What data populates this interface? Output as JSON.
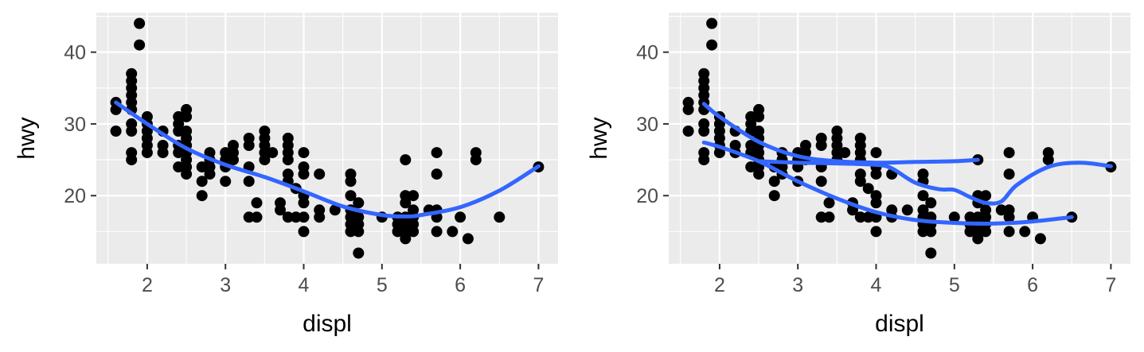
{
  "chart_data": [
    {
      "type": "scatter",
      "title": "",
      "xlabel": "displ",
      "ylabel": "hwy",
      "xlim": [
        1.35,
        7.25
      ],
      "ylim": [
        10.5,
        45.5
      ],
      "x_ticks": [
        2,
        3,
        4,
        5,
        6,
        7
      ],
      "y_ticks": [
        20,
        30,
        40
      ],
      "x_tick_labels": [
        "2",
        "3",
        "4",
        "5",
        "6",
        "7"
      ],
      "y_tick_labels": [
        "20",
        "30",
        "40"
      ],
      "grid": true,
      "legend": "none",
      "colors": {
        "points": "#000000",
        "smooth": "#3366ff",
        "panel": "#ebebeb"
      },
      "points": [
        [
          1.6,
          33
        ],
        [
          1.6,
          32
        ],
        [
          1.6,
          29
        ],
        [
          1.8,
          37
        ],
        [
          1.8,
          36
        ],
        [
          1.8,
          35
        ],
        [
          1.8,
          34
        ],
        [
          1.8,
          33
        ],
        [
          1.8,
          32
        ],
        [
          1.8,
          30
        ],
        [
          1.8,
          29
        ],
        [
          1.8,
          26
        ],
        [
          1.8,
          25
        ],
        [
          1.9,
          44
        ],
        [
          1.9,
          41
        ],
        [
          2.0,
          31
        ],
        [
          2.0,
          30
        ],
        [
          2.0,
          29
        ],
        [
          2.0,
          28
        ],
        [
          2.0,
          27
        ],
        [
          2.0,
          26
        ],
        [
          2.2,
          29
        ],
        [
          2.2,
          27
        ],
        [
          2.2,
          26
        ],
        [
          2.4,
          31
        ],
        [
          2.4,
          30
        ],
        [
          2.4,
          29
        ],
        [
          2.4,
          27
        ],
        [
          2.4,
          26
        ],
        [
          2.4,
          24
        ],
        [
          2.5,
          32
        ],
        [
          2.5,
          31
        ],
        [
          2.5,
          29
        ],
        [
          2.5,
          28
        ],
        [
          2.5,
          27
        ],
        [
          2.5,
          26
        ],
        [
          2.5,
          25
        ],
        [
          2.5,
          24
        ],
        [
          2.5,
          23
        ],
        [
          2.7,
          24
        ],
        [
          2.7,
          22
        ],
        [
          2.7,
          20
        ],
        [
          2.8,
          26
        ],
        [
          2.8,
          25
        ],
        [
          2.8,
          24
        ],
        [
          2.8,
          23
        ],
        [
          3.0,
          26
        ],
        [
          3.0,
          25
        ],
        [
          3.0,
          24
        ],
        [
          3.0,
          22
        ],
        [
          3.1,
          27
        ],
        [
          3.1,
          26
        ],
        [
          3.1,
          25
        ],
        [
          3.3,
          28
        ],
        [
          3.3,
          27
        ],
        [
          3.3,
          24
        ],
        [
          3.3,
          22
        ],
        [
          3.3,
          17
        ],
        [
          3.4,
          19
        ],
        [
          3.4,
          17
        ],
        [
          3.5,
          29
        ],
        [
          3.5,
          28
        ],
        [
          3.5,
          27
        ],
        [
          3.5,
          26
        ],
        [
          3.5,
          25
        ],
        [
          3.6,
          26
        ],
        [
          3.7,
          19
        ],
        [
          3.7,
          18
        ],
        [
          3.8,
          28
        ],
        [
          3.8,
          27
        ],
        [
          3.8,
          26
        ],
        [
          3.8,
          25
        ],
        [
          3.8,
          23
        ],
        [
          3.8,
          22
        ],
        [
          3.8,
          17
        ],
        [
          3.9,
          21
        ],
        [
          3.9,
          17
        ],
        [
          4.0,
          26
        ],
        [
          4.0,
          24
        ],
        [
          4.0,
          23
        ],
        [
          4.0,
          20
        ],
        [
          4.0,
          19
        ],
        [
          4.0,
          17
        ],
        [
          4.0,
          15
        ],
        [
          4.2,
          23
        ],
        [
          4.2,
          18
        ],
        [
          4.2,
          17
        ],
        [
          4.4,
          18
        ],
        [
          4.6,
          23
        ],
        [
          4.6,
          22
        ],
        [
          4.6,
          20
        ],
        [
          4.6,
          18
        ],
        [
          4.6,
          17
        ],
        [
          4.6,
          16
        ],
        [
          4.6,
          15
        ],
        [
          4.7,
          19
        ],
        [
          4.7,
          17
        ],
        [
          4.7,
          16
        ],
        [
          4.7,
          15
        ],
        [
          4.7,
          12
        ],
        [
          5.0,
          17
        ],
        [
          5.2,
          17
        ],
        [
          5.2,
          16
        ],
        [
          5.2,
          15
        ],
        [
          5.3,
          25
        ],
        [
          5.3,
          20
        ],
        [
          5.3,
          19
        ],
        [
          5.3,
          17
        ],
        [
          5.3,
          16
        ],
        [
          5.3,
          15
        ],
        [
          5.3,
          14
        ],
        [
          5.4,
          20
        ],
        [
          5.4,
          18
        ],
        [
          5.4,
          17
        ],
        [
          5.4,
          16
        ],
        [
          5.4,
          15
        ],
        [
          5.6,
          18
        ],
        [
          5.7,
          26
        ],
        [
          5.7,
          23
        ],
        [
          5.7,
          18
        ],
        [
          5.7,
          17
        ],
        [
          5.7,
          15
        ],
        [
          5.9,
          15
        ],
        [
          6.0,
          17
        ],
        [
          6.1,
          14
        ],
        [
          6.2,
          26
        ],
        [
          6.2,
          25
        ],
        [
          6.5,
          17
        ],
        [
          7.0,
          24
        ]
      ],
      "smooth_lines": [
        {
          "x": [
            1.6,
            2.0,
            2.5,
            3.0,
            3.5,
            4.0,
            4.5,
            5.0,
            5.3,
            5.5,
            6.0,
            6.5,
            7.0
          ],
          "y": [
            33.0,
            30.0,
            26.6,
            24.3,
            22.6,
            20.6,
            18.5,
            17.3,
            17.1,
            17.3,
            18.4,
            20.7,
            24.1
          ]
        }
      ]
    },
    {
      "type": "scatter",
      "title": "",
      "xlabel": "displ",
      "ylabel": "hwy",
      "xlim": [
        1.35,
        7.25
      ],
      "ylim": [
        10.5,
        45.5
      ],
      "x_ticks": [
        2,
        3,
        4,
        5,
        6,
        7
      ],
      "y_ticks": [
        20,
        30,
        40
      ],
      "x_tick_labels": [
        "2",
        "3",
        "4",
        "5",
        "6",
        "7"
      ],
      "y_tick_labels": [
        "20",
        "30",
        "40"
      ],
      "grid": true,
      "legend": "none",
      "colors": {
        "points": "#000000",
        "smooth": "#3366ff",
        "panel": "#ebebeb"
      },
      "points": [
        [
          1.6,
          33
        ],
        [
          1.6,
          32
        ],
        [
          1.6,
          29
        ],
        [
          1.8,
          37
        ],
        [
          1.8,
          36
        ],
        [
          1.8,
          35
        ],
        [
          1.8,
          34
        ],
        [
          1.8,
          33
        ],
        [
          1.8,
          32
        ],
        [
          1.8,
          30
        ],
        [
          1.8,
          29
        ],
        [
          1.8,
          26
        ],
        [
          1.8,
          25
        ],
        [
          1.9,
          44
        ],
        [
          1.9,
          41
        ],
        [
          2.0,
          31
        ],
        [
          2.0,
          30
        ],
        [
          2.0,
          29
        ],
        [
          2.0,
          28
        ],
        [
          2.0,
          27
        ],
        [
          2.0,
          26
        ],
        [
          2.2,
          29
        ],
        [
          2.2,
          27
        ],
        [
          2.2,
          26
        ],
        [
          2.4,
          31
        ],
        [
          2.4,
          30
        ],
        [
          2.4,
          29
        ],
        [
          2.4,
          27
        ],
        [
          2.4,
          26
        ],
        [
          2.4,
          24
        ],
        [
          2.5,
          32
        ],
        [
          2.5,
          31
        ],
        [
          2.5,
          29
        ],
        [
          2.5,
          28
        ],
        [
          2.5,
          27
        ],
        [
          2.5,
          26
        ],
        [
          2.5,
          25
        ],
        [
          2.5,
          24
        ],
        [
          2.5,
          23
        ],
        [
          2.7,
          24
        ],
        [
          2.7,
          22
        ],
        [
          2.7,
          20
        ],
        [
          2.8,
          26
        ],
        [
          2.8,
          25
        ],
        [
          2.8,
          24
        ],
        [
          2.8,
          23
        ],
        [
          3.0,
          26
        ],
        [
          3.0,
          25
        ],
        [
          3.0,
          24
        ],
        [
          3.0,
          22
        ],
        [
          3.1,
          27
        ],
        [
          3.1,
          26
        ],
        [
          3.1,
          25
        ],
        [
          3.3,
          28
        ],
        [
          3.3,
          27
        ],
        [
          3.3,
          24
        ],
        [
          3.3,
          22
        ],
        [
          3.3,
          17
        ],
        [
          3.4,
          19
        ],
        [
          3.4,
          17
        ],
        [
          3.5,
          29
        ],
        [
          3.5,
          28
        ],
        [
          3.5,
          27
        ],
        [
          3.5,
          26
        ],
        [
          3.5,
          25
        ],
        [
          3.6,
          26
        ],
        [
          3.7,
          19
        ],
        [
          3.7,
          18
        ],
        [
          3.8,
          28
        ],
        [
          3.8,
          27
        ],
        [
          3.8,
          26
        ],
        [
          3.8,
          25
        ],
        [
          3.8,
          23
        ],
        [
          3.8,
          22
        ],
        [
          3.8,
          17
        ],
        [
          3.9,
          21
        ],
        [
          3.9,
          17
        ],
        [
          4.0,
          26
        ],
        [
          4.0,
          24
        ],
        [
          4.0,
          23
        ],
        [
          4.0,
          20
        ],
        [
          4.0,
          19
        ],
        [
          4.0,
          17
        ],
        [
          4.0,
          15
        ],
        [
          4.2,
          23
        ],
        [
          4.2,
          18
        ],
        [
          4.2,
          17
        ],
        [
          4.4,
          18
        ],
        [
          4.6,
          23
        ],
        [
          4.6,
          22
        ],
        [
          4.6,
          20
        ],
        [
          4.6,
          18
        ],
        [
          4.6,
          17
        ],
        [
          4.6,
          16
        ],
        [
          4.6,
          15
        ],
        [
          4.7,
          19
        ],
        [
          4.7,
          17
        ],
        [
          4.7,
          16
        ],
        [
          4.7,
          15
        ],
        [
          4.7,
          12
        ],
        [
          5.0,
          17
        ],
        [
          5.2,
          17
        ],
        [
          5.2,
          16
        ],
        [
          5.2,
          15
        ],
        [
          5.3,
          25
        ],
        [
          5.3,
          20
        ],
        [
          5.3,
          19
        ],
        [
          5.3,
          17
        ],
        [
          5.3,
          16
        ],
        [
          5.3,
          15
        ],
        [
          5.3,
          14
        ],
        [
          5.4,
          20
        ],
        [
          5.4,
          18
        ],
        [
          5.4,
          17
        ],
        [
          5.4,
          16
        ],
        [
          5.4,
          15
        ],
        [
          5.6,
          18
        ],
        [
          5.7,
          26
        ],
        [
          5.7,
          23
        ],
        [
          5.7,
          18
        ],
        [
          5.7,
          17
        ],
        [
          5.7,
          15
        ],
        [
          5.9,
          15
        ],
        [
          6.0,
          17
        ],
        [
          6.1,
          14
        ],
        [
          6.2,
          26
        ],
        [
          6.2,
          25
        ],
        [
          6.5,
          17
        ],
        [
          7.0,
          24
        ]
      ],
      "smooth_lines": [
        {
          "x": [
            1.8,
            2.0,
            2.5,
            3.0,
            3.5,
            4.0,
            4.5,
            5.0,
            5.3
          ],
          "y": [
            32.8,
            31.0,
            27.5,
            25.5,
            24.8,
            24.6,
            24.7,
            24.8,
            25.0
          ]
        },
        {
          "x": [
            1.8,
            2.0,
            2.5,
            3.0,
            3.5,
            4.0,
            4.5,
            5.0,
            5.5,
            6.0,
            6.5
          ],
          "y": [
            27.4,
            26.8,
            24.8,
            22.0,
            19.6,
            17.7,
            16.6,
            16.2,
            16.1,
            16.4,
            17.0
          ]
        },
        {
          "x": [
            2.5,
            3.0,
            3.5,
            4.0,
            4.2,
            4.5,
            4.8,
            5.0,
            5.2,
            5.4,
            5.6,
            5.8,
            6.2,
            6.6,
            7.0
          ],
          "y": [
            24.8,
            24.6,
            24.5,
            24.3,
            23.8,
            21.8,
            20.9,
            20.8,
            19.8,
            19.0,
            19.2,
            21.5,
            24.0,
            24.6,
            24.1
          ]
        }
      ]
    }
  ]
}
